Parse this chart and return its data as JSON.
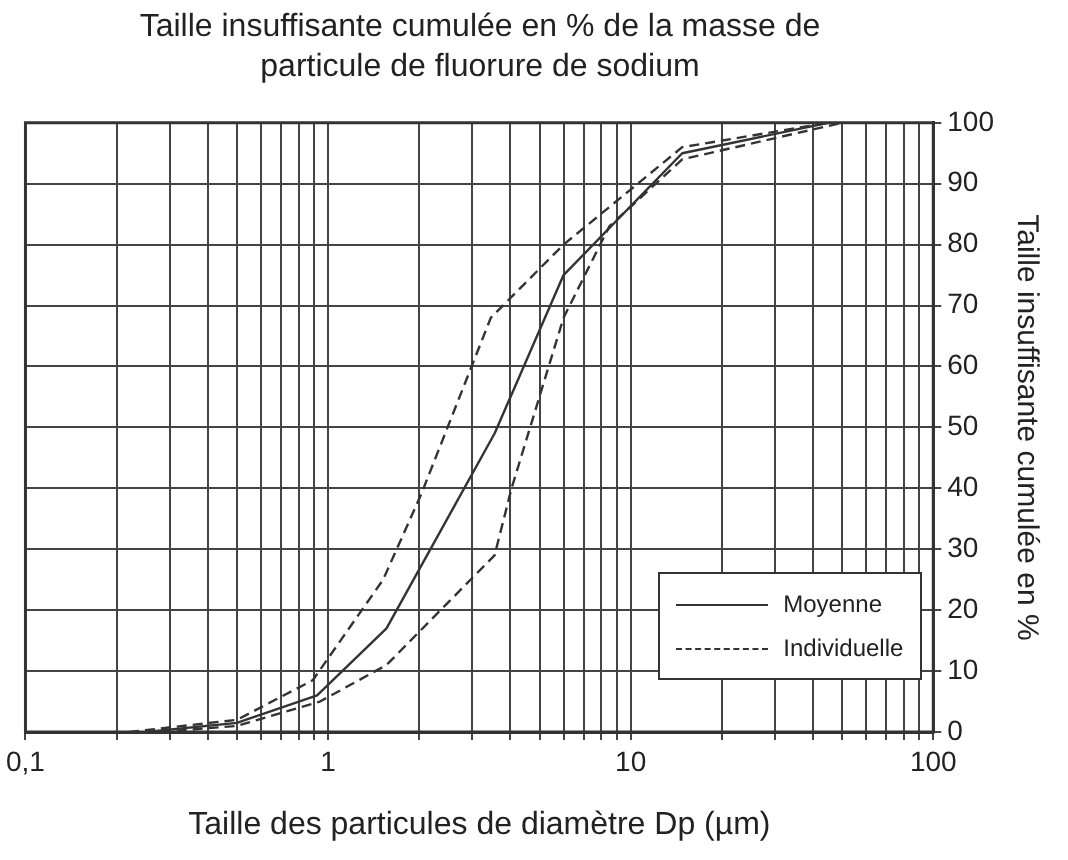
{
  "chart_data": {
    "type": "line",
    "title": "Taille insuffisante cumulée en % de la masse de particule de fluorure de sodium",
    "xlabel": "Taille des particules de diamètre Dp (µm)",
    "ylabel": "Taille insuffisante cumulée en %",
    "log": "x",
    "grid": true,
    "legend": "bottom right",
    "marker": "none",
    "xlim": [
      0.1,
      100
    ],
    "xticks": [
      {
        "value": 0.1,
        "label": "0,1"
      },
      {
        "value": 0.2,
        "label": null
      },
      {
        "value": 0.3,
        "label": null
      },
      {
        "value": 0.4,
        "label": null
      },
      {
        "value": 0.5,
        "label": null
      },
      {
        "value": 0.6,
        "label": null
      },
      {
        "value": 0.7,
        "label": null
      },
      {
        "value": 0.8,
        "label": null
      },
      {
        "value": 0.9,
        "label": null
      },
      1,
      {
        "value": 2,
        "label": null
      },
      {
        "value": 3,
        "label": null
      },
      {
        "value": 4,
        "label": null
      },
      {
        "value": 5,
        "label": null
      },
      {
        "value": 6,
        "label": null
      },
      {
        "value": 7,
        "label": null
      },
      {
        "value": 8,
        "label": null
      },
      {
        "value": 9,
        "label": null
      },
      10,
      {
        "value": 20,
        "label": null
      },
      {
        "value": 30,
        "label": null
      },
      {
        "value": 40,
        "label": null
      },
      {
        "value": 50,
        "label": null
      },
      {
        "value": 60,
        "label": null
      },
      {
        "value": 70,
        "label": null
      },
      {
        "value": 80,
        "label": null
      },
      {
        "value": 90,
        "label": null
      },
      100
    ],
    "ylim": [
      0,
      100
    ],
    "yticks": [
      0,
      10,
      20,
      30,
      40,
      50,
      60,
      70,
      80,
      90,
      100
    ],
    "series": [
      {
        "name": "Moyenne",
        "color": "#333333",
        "line_style": "solid",
        "x": [
          0.25,
          0.5,
          0.92,
          1.56,
          3.55,
          6.0,
          14.8,
          45
        ],
        "values": [
          0,
          1.5,
          6,
          17,
          49,
          75,
          95,
          100
        ]
      },
      {
        "name": "Individuelle",
        "color": "#333333",
        "line_style": "dashed",
        "x": [
          0.22,
          0.5,
          0.89,
          1.52,
          2.03,
          3.45,
          6.0,
          14.8,
          45
        ],
        "values": [
          0,
          2,
          8.5,
          25,
          39,
          68,
          80,
          96,
          100
        ]
      },
      {
        "color": "#333333",
        "line_style": "dashed",
        "x": [
          0.28,
          0.5,
          0.94,
          1.56,
          3.55,
          4.04,
          6.0,
          8.5,
          14.8,
          50
        ],
        "values": [
          0,
          1,
          5,
          11,
          29,
          40,
          68,
          83,
          94,
          100
        ]
      }
    ]
  }
}
